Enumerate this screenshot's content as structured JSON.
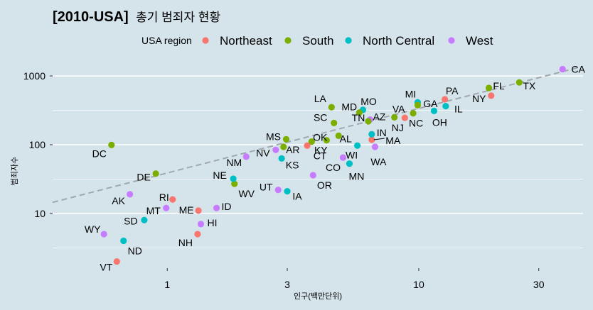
{
  "chart_data": {
    "type": "scatter",
    "title": "[2010-USA]",
    "subtitle": "총기 범죄자 현황",
    "xlabel": "인구(백만단위)",
    "ylabel": "범죄자수",
    "x_scale": "log10",
    "y_scale": "log10",
    "xlim": [
      0.35,
      45
    ],
    "ylim": [
      1.6,
      1500
    ],
    "x_ticks": [
      {
        "value": 1,
        "label": "1"
      },
      {
        "value": 3,
        "label": "3"
      },
      {
        "value": 10,
        "label": "10"
      },
      {
        "value": 30,
        "label": "30"
      }
    ],
    "y_ticks": [
      {
        "value": 10,
        "label": "10"
      },
      {
        "value": 100,
        "label": "100"
      },
      {
        "value": 1000,
        "label": "1000"
      }
    ],
    "grid": "horizontal major and minor",
    "legend": {
      "title": "USA region",
      "position": "top",
      "entries": [
        {
          "label": "Northeast",
          "color": "#f8766d"
        },
        {
          "label": "South",
          "color": "#7cae00"
        },
        {
          "label": "North Central",
          "color": "#00bfc4"
        },
        {
          "label": "West",
          "color": "#c77cff"
        }
      ]
    },
    "trend_line": {
      "style": "dashed",
      "color": "#a0a8ad",
      "points": [
        [
          0.35,
          14.5
        ],
        [
          45,
          1380
        ]
      ]
    },
    "points": [
      {
        "label": "CA",
        "region": "West",
        "x": 37.3,
        "y": 1257
      },
      {
        "label": "TX",
        "region": "South",
        "x": 25.1,
        "y": 805
      },
      {
        "label": "FL",
        "region": "South",
        "x": 19.0,
        "y": 669
      },
      {
        "label": "NY",
        "region": "Northeast",
        "x": 19.4,
        "y": 517
      },
      {
        "label": "PA",
        "region": "Northeast",
        "x": 12.7,
        "y": 457
      },
      {
        "label": "IL",
        "region": "North Central",
        "x": 12.8,
        "y": 364
      },
      {
        "label": "OH",
        "region": "North Central",
        "x": 11.5,
        "y": 310
      },
      {
        "label": "MI",
        "region": "North Central",
        "x": 9.9,
        "y": 413
      },
      {
        "label": "GA",
        "region": "South",
        "x": 9.9,
        "y": 376
      },
      {
        "label": "NC",
        "region": "South",
        "x": 9.5,
        "y": 286
      },
      {
        "label": "NJ",
        "region": "Northeast",
        "x": 8.8,
        "y": 246
      },
      {
        "label": "VA",
        "region": "South",
        "x": 8.0,
        "y": 250
      },
      {
        "label": "WA",
        "region": "West",
        "x": 6.7,
        "y": 93
      },
      {
        "label": "MA",
        "region": "Northeast",
        "x": 6.5,
        "y": 118
      },
      {
        "label": "IN",
        "region": "North Central",
        "x": 6.5,
        "y": 142
      },
      {
        "label": "AZ",
        "region": "West",
        "x": 6.4,
        "y": 232
      },
      {
        "label": "TN",
        "region": "South",
        "x": 6.3,
        "y": 219
      },
      {
        "label": "MO",
        "region": "North Central",
        "x": 6.0,
        "y": 321
      },
      {
        "label": "MD",
        "region": "South",
        "x": 5.8,
        "y": 293
      },
      {
        "label": "WI",
        "region": "North Central",
        "x": 5.7,
        "y": 97
      },
      {
        "label": "MN",
        "region": "North Central",
        "x": 5.3,
        "y": 53
      },
      {
        "label": "CO",
        "region": "West",
        "x": 5.0,
        "y": 65
      },
      {
        "label": "AL",
        "region": "South",
        "x": 4.8,
        "y": 135
      },
      {
        "label": "SC",
        "region": "South",
        "x": 4.6,
        "y": 207
      },
      {
        "label": "LA",
        "region": "South",
        "x": 4.5,
        "y": 351
      },
      {
        "label": "KY",
        "region": "South",
        "x": 4.3,
        "y": 116
      },
      {
        "label": "OR",
        "region": "West",
        "x": 3.8,
        "y": 36
      },
      {
        "label": "OK",
        "region": "South",
        "x": 3.75,
        "y": 111
      },
      {
        "label": "CT",
        "region": "Northeast",
        "x": 3.6,
        "y": 97
      },
      {
        "label": "IA",
        "region": "North Central",
        "x": 3.0,
        "y": 21
      },
      {
        "label": "MS",
        "region": "South",
        "x": 2.97,
        "y": 120
      },
      {
        "label": "AR",
        "region": "South",
        "x": 2.9,
        "y": 93
      },
      {
        "label": "KS",
        "region": "North Central",
        "x": 2.85,
        "y": 63
      },
      {
        "label": "UT",
        "region": "West",
        "x": 2.76,
        "y": 22
      },
      {
        "label": "NV",
        "region": "West",
        "x": 2.7,
        "y": 84
      },
      {
        "label": "NM",
        "region": "West",
        "x": 2.06,
        "y": 67
      },
      {
        "label": "WV",
        "region": "South",
        "x": 1.85,
        "y": 27
      },
      {
        "label": "NE",
        "region": "North Central",
        "x": 1.83,
        "y": 32
      },
      {
        "label": "ID",
        "region": "West",
        "x": 1.57,
        "y": 12
      },
      {
        "label": "HI",
        "region": "West",
        "x": 1.36,
        "y": 7
      },
      {
        "label": "ME",
        "region": "Northeast",
        "x": 1.33,
        "y": 11
      },
      {
        "label": "NH",
        "region": "Northeast",
        "x": 1.32,
        "y": 5
      },
      {
        "label": "RI",
        "region": "Northeast",
        "x": 1.05,
        "y": 16
      },
      {
        "label": "MT",
        "region": "West",
        "x": 0.99,
        "y": 12
      },
      {
        "label": "DE",
        "region": "South",
        "x": 0.9,
        "y": 38
      },
      {
        "label": "SD",
        "region": "North Central",
        "x": 0.81,
        "y": 8
      },
      {
        "label": "AK",
        "region": "West",
        "x": 0.71,
        "y": 19
      },
      {
        "label": "ND",
        "region": "North Central",
        "x": 0.67,
        "y": 4
      },
      {
        "label": "VT",
        "region": "Northeast",
        "x": 0.63,
        "y": 2
      },
      {
        "label": "DC",
        "region": "South",
        "x": 0.6,
        "y": 99
      },
      {
        "label": "WY",
        "region": "West",
        "x": 0.56,
        "y": 5
      }
    ]
  }
}
